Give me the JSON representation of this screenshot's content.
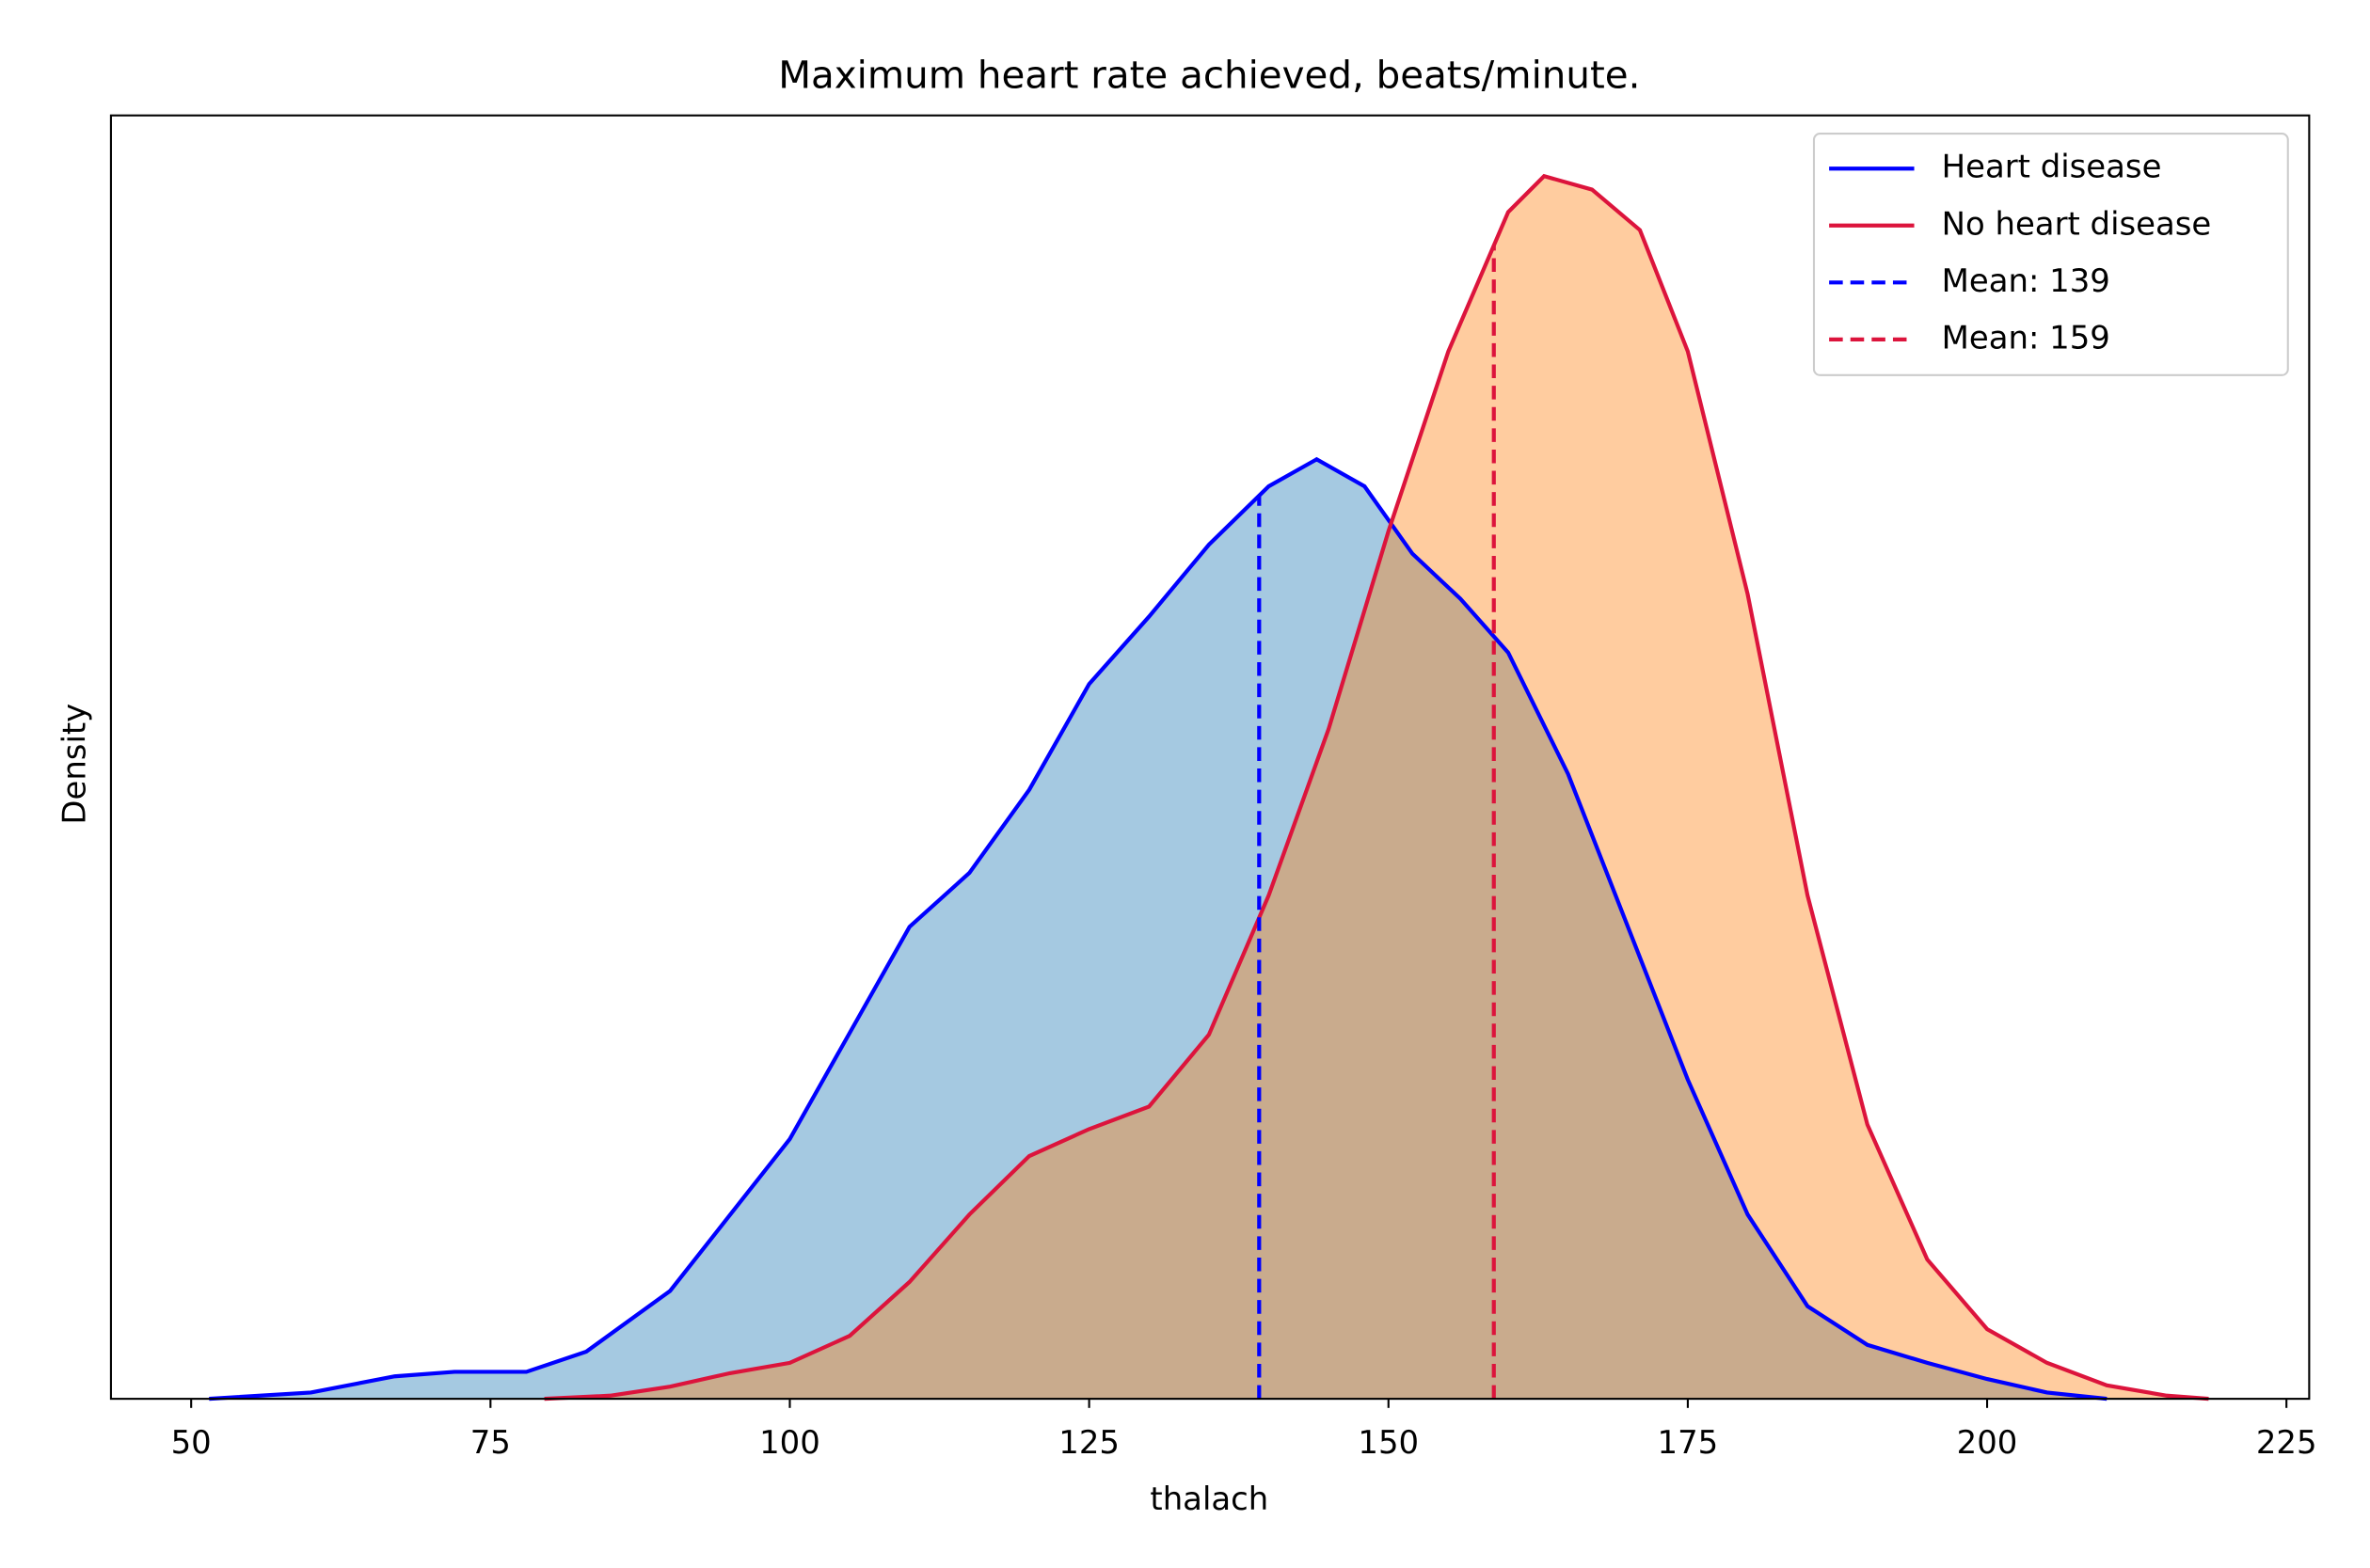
{
  "chart_data": {
    "type": "kde",
    "title": "Maximum heart rate achieved, beats/minute.",
    "x_label": "thalach",
    "y_label": "Density",
    "xlim": [
      43.3,
      226.9
    ],
    "ylim": [
      0,
      0.02855
    ],
    "xticks": [
      50,
      75,
      100,
      125,
      150,
      175,
      200,
      225
    ],
    "legend": "upper right",
    "series": [
      {
        "name": "Heart disease",
        "color": "blue",
        "fill": "#1f77b4",
        "x": [
          51.5,
          60,
          67,
          72,
          78,
          83,
          90,
          100,
          110,
          115,
          120,
          125,
          130,
          135,
          140,
          144,
          148,
          152,
          156,
          160,
          165,
          170,
          175,
          180,
          185,
          190,
          195,
          200,
          205,
          210
        ],
        "values": [
          0,
          0.00014,
          0.0005,
          0.0006,
          0.0006,
          0.00105,
          0.0024,
          0.00578,
          0.0105,
          0.0117,
          0.01355,
          0.0159,
          0.0174,
          0.019,
          0.0203,
          0.0209,
          0.0203,
          0.0188,
          0.0178,
          0.0166,
          0.0139,
          0.0105,
          0.0071,
          0.0041,
          0.00206,
          0.0012,
          0.0008,
          0.00044,
          0.00014,
          0
        ]
      },
      {
        "name": "No heart disease",
        "color": "#dc143c",
        "fill": "#ff7f0e",
        "x": [
          79.5,
          85,
          90,
          95,
          100,
          105,
          110,
          115,
          120,
          125,
          130,
          135,
          140,
          145,
          150,
          155,
          160,
          163,
          167,
          171,
          175,
          180,
          185,
          190,
          195,
          200,
          205,
          210,
          215,
          218.5
        ],
        "values": [
          0,
          7e-05,
          0.00027,
          0.00057,
          0.0008,
          0.0014,
          0.0026,
          0.0041,
          0.0054,
          0.006,
          0.0065,
          0.0081,
          0.0112,
          0.0149,
          0.0193,
          0.0233,
          0.0264,
          0.0272,
          0.0269,
          0.026,
          0.0233,
          0.0179,
          0.0112,
          0.0061,
          0.0031,
          0.00155,
          0.0008,
          0.0003,
          7e-05,
          0
        ]
      }
    ],
    "means": [
      {
        "name": "Mean: 139",
        "value": 139.2,
        "color": "blue"
      },
      {
        "name": "Mean: 159",
        "value": 158.8,
        "color": "#dc143c"
      }
    ]
  }
}
